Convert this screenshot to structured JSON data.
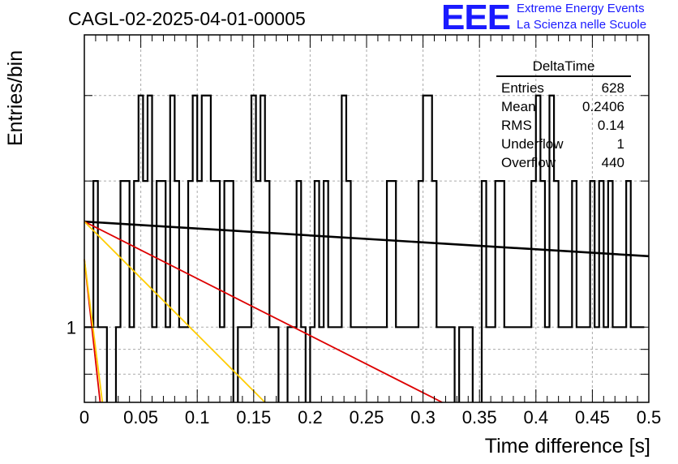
{
  "header": {
    "run_title": "CAGL-02-2025-04-01-00005",
    "logo_text": "EEE",
    "logo_line1": "Extreme Energy Events",
    "logo_line2": "La Scienza nelle Scuole",
    "logo_color": "#1a1aff"
  },
  "stats_box": {
    "title": "DeltaTime",
    "rows": [
      {
        "label": "Entries",
        "value": "628"
      },
      {
        "label": "Mean",
        "value": "0.2406"
      },
      {
        "label": "RMS",
        "value": "0.14"
      },
      {
        "label": "Underflow",
        "value": "1"
      },
      {
        "label": "Overflow",
        "value": "440"
      }
    ]
  },
  "chart_data": {
    "type": "histogram",
    "title": "",
    "xlabel": "Time difference [s]",
    "ylabel": "Entries/bin",
    "xlim": [
      0,
      0.5
    ],
    "ylog": true,
    "ylim": [
      0.7,
      4.0
    ],
    "grid": true,
    "x_ticks": [
      0,
      0.05,
      0.1,
      0.15,
      0.2,
      0.25,
      0.3,
      0.35,
      0.4,
      0.45,
      0.5
    ],
    "x_tick_labels": [
      "0",
      "0.05",
      "0.1",
      "0.15",
      "0.2",
      "0.25",
      "0.3",
      "0.35",
      "0.4",
      "0.45",
      "0.5"
    ],
    "y_tick_labels": [
      {
        "value": 1,
        "label": "1"
      }
    ],
    "bin_width": 0.004,
    "bin_counts": [
      1,
      1,
      2,
      1,
      1,
      0,
      0,
      1,
      2,
      2,
      1,
      2,
      3,
      2,
      3,
      1,
      2,
      2,
      1,
      3,
      2,
      1,
      1,
      2,
      3,
      2,
      3,
      3,
      2,
      2,
      1,
      2,
      2,
      0,
      1,
      1,
      1,
      3,
      2,
      3,
      2,
      1,
      1,
      0,
      0,
      1,
      1,
      2,
      1,
      0,
      1,
      2,
      1,
      2,
      1,
      1,
      1,
      3,
      2,
      1,
      1,
      1,
      1,
      1,
      1,
      1,
      1,
      2,
      2,
      1,
      1,
      1,
      1,
      1,
      2,
      3,
      3,
      2,
      1,
      1,
      1,
      1,
      0,
      1,
      1,
      1,
      0,
      0,
      2,
      1,
      1,
      2,
      2,
      1,
      1,
      1,
      1,
      1,
      1,
      2,
      3,
      2,
      1,
      3,
      2,
      1,
      1,
      1,
      2,
      1,
      1,
      1,
      2,
      1,
      2,
      1,
      2,
      1,
      1,
      1,
      2,
      1,
      1,
      1
    ],
    "fits": [
      {
        "color": "#000000",
        "y_at_0": 1.65,
        "y_at_max": 1.4,
        "x_end": 0.5
      },
      {
        "color": "#dd0000",
        "y_at_0": 1.65,
        "y_at_max": 0.7,
        "x_end": 0.317
      },
      {
        "color": "#ffcc00",
        "y_at_0": 1.65,
        "y_at_max": 0.7,
        "x_end": 0.16
      },
      {
        "color": "#dd0000",
        "y_at_0": 1.38,
        "y_at_max": 0.7,
        "x_end": 0.014
      },
      {
        "color": "#ffcc00",
        "y_at_0": 1.38,
        "y_at_max": 0.7,
        "x_end": 0.016
      }
    ]
  }
}
